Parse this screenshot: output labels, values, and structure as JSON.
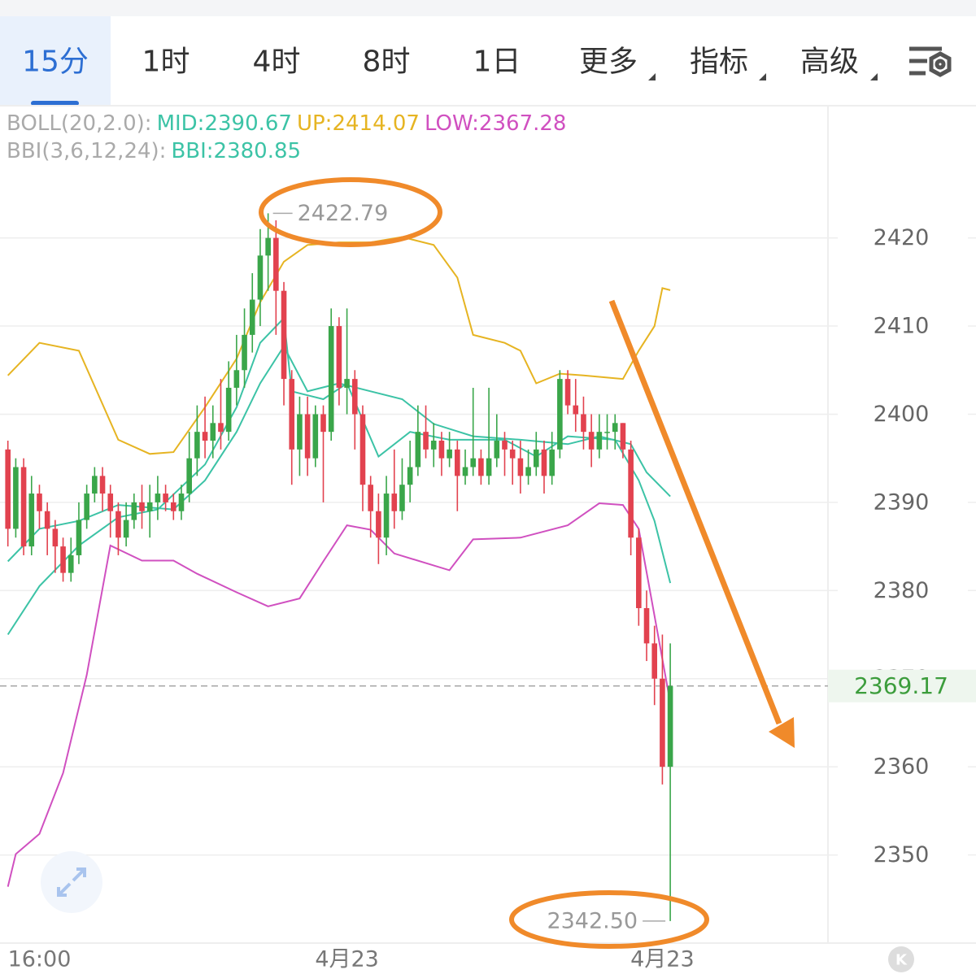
{
  "tabs": [
    "15分",
    "1时",
    "4时",
    "8时",
    "1日",
    "更多",
    "指标",
    "高级"
  ],
  "chart_data": {
    "type": "candlestick",
    "indicators": [
      {
        "name": "BOLL(20,2.0):",
        "items": [
          {
            "text": "MID:2390.67",
            "color": "#3cc3a6"
          },
          {
            "text": "UP:2414.07",
            "color": "#e6b422"
          },
          {
            "text": "LOW:2367.28",
            "color": "#d050c0"
          }
        ]
      },
      {
        "name": "BBI(3,6,12,24):",
        "items": [
          {
            "text": "BBI:2380.85",
            "color": "#3cc3a6"
          }
        ]
      }
    ],
    "open": [
      2396,
      2387,
      2394,
      2385,
      2391,
      2389,
      2387,
      2385,
      2382,
      2384,
      2388,
      2391,
      2393,
      2391,
      2389,
      2386,
      2388,
      2390,
      2389,
      2390,
      2391,
      2390,
      2389,
      2391,
      2395,
      2398,
      2397,
      2399,
      2398,
      2403,
      2405,
      2409,
      2413,
      2418,
      2420,
      2414,
      2404,
      2396,
      2400,
      2395,
      2400,
      2398,
      2410,
      2403,
      2404,
      2400,
      2392,
      2389,
      2386,
      2391,
      2389,
      2392,
      2394,
      2398,
      2396,
      2397,
      2395,
      2396,
      2393,
      2394,
      2395,
      2393,
      2395,
      2397,
      2396,
      2395,
      2393,
      2394,
      2396,
      2393,
      2396,
      2404,
      2401,
      2400,
      2398,
      2396,
      2398,
      2398,
      2399,
      2396,
      2386,
      2378,
      2374,
      2370,
      2360
    ],
    "high": [
      2397,
      2395,
      2395,
      2393,
      2392,
      2390,
      2388,
      2386,
      2386,
      2390,
      2392,
      2394,
      2394,
      2392,
      2390,
      2390,
      2391,
      2392,
      2392,
      2393,
      2392,
      2391,
      2392,
      2398,
      2401,
      2402,
      2401,
      2404,
      2406,
      2409,
      2412,
      2416,
      2421,
      2422.79,
      2422,
      2415,
      2405,
      2402,
      2402,
      2401,
      2401,
      2412,
      2411,
      2412,
      2405,
      2401,
      2393,
      2391,
      2393,
      2396,
      2395,
      2397,
      2401,
      2401,
      2399,
      2398,
      2398,
      2397,
      2396,
      2403,
      2396,
      2403,
      2400,
      2398,
      2397,
      2397,
      2396,
      2398,
      2397,
      2398,
      2405,
      2405,
      2404,
      2402,
      2400,
      2400,
      2400,
      2400,
      2399,
      2397,
      2387,
      2380,
      2376,
      2375,
      2374
    ],
    "low": [
      2385,
      2386,
      2384,
      2384,
      2387,
      2384,
      2382,
      2381,
      2381,
      2383,
      2387,
      2390,
      2389,
      2386,
      2384,
      2385,
      2387,
      2387,
      2386,
      2388,
      2389,
      2388,
      2388,
      2390,
      2393,
      2395,
      2395,
      2396,
      2397,
      2401,
      2403,
      2407,
      2410,
      2414,
      2409,
      2401,
      2392,
      2393,
      2393,
      2394,
      2390,
      2397,
      2401,
      2400,
      2396,
      2389,
      2386,
      2383,
      2384,
      2387,
      2388,
      2390,
      2393,
      2395,
      2394,
      2393,
      2394,
      2389,
      2392,
      2393,
      2392,
      2392,
      2394,
      2393,
      2392,
      2391,
      2392,
      2393,
      2391,
      2392,
      2395,
      2400,
      2398,
      2396,
      2394,
      2395,
      2396,
      2396,
      2395,
      2384,
      2376,
      2372,
      2367,
      2358,
      2342.5
    ],
    "close": [
      2387,
      2394,
      2385,
      2391,
      2389,
      2387,
      2385,
      2382,
      2384,
      2388,
      2391,
      2393,
      2391,
      2389,
      2386,
      2388,
      2390,
      2389,
      2390,
      2391,
      2390,
      2389,
      2391,
      2395,
      2398,
      2397,
      2399,
      2398,
      2403,
      2405,
      2409,
      2413,
      2418,
      2420,
      2414,
      2404,
      2396,
      2400,
      2395,
      2400,
      2398,
      2410,
      2403,
      2404,
      2400,
      2392,
      2389,
      2386,
      2391,
      2389,
      2392,
      2394,
      2398,
      2396,
      2397,
      2395,
      2396,
      2393,
      2394,
      2395,
      2393,
      2395,
      2397,
      2396,
      2395,
      2393,
      2394,
      2396,
      2393,
      2396,
      2404,
      2401,
      2400,
      2398,
      2396,
      2398,
      2398,
      2399,
      2396,
      2386,
      2378,
      2374,
      2370,
      2360,
      2369.17
    ],
    "up_color": "#3aa64a",
    "down_color": "#e2424f",
    "lines": [
      {
        "color": "#e6b422",
        "x": [
          0,
          4,
          9,
          14,
          18,
          21,
          25,
          29,
          32,
          35,
          38,
          42,
          46,
          50,
          54,
          57,
          59,
          63,
          65,
          67,
          70,
          73,
          78,
          80,
          82,
          83,
          84
        ],
        "values": [
          2404.4,
          2408.1,
          2407.2,
          2397.1,
          2395.5,
          2395.7,
          2400.8,
          2406.3,
          2412.7,
          2417.3,
          2419.2,
          2419.5,
          2419.5,
          2420.1,
          2419.2,
          2415.5,
          2409,
          2408.1,
          2407.2,
          2403.5,
          2404.6,
          2404.4,
          2404,
          2407.2,
          2410,
          2414.3,
          2414.07
        ]
      },
      {
        "color": "#d050c0",
        "x": [
          0,
          1,
          4,
          7,
          10,
          13,
          17,
          21,
          24,
          29,
          33,
          37,
          40,
          43,
          46,
          49,
          56,
          59,
          65,
          71,
          75,
          78,
          80,
          84
        ],
        "values": [
          2346.4,
          2350.1,
          2352.4,
          2359.3,
          2370.4,
          2385.1,
          2383.4,
          2383.4,
          2381.9,
          2379.8,
          2378.2,
          2379.1,
          2383.3,
          2387.4,
          2386.9,
          2384.2,
          2382.3,
          2385.8,
          2386,
          2387.4,
          2389.9,
          2389.7,
          2387,
          2367.28
        ]
      },
      {
        "color": "#3cc3a6",
        "x": [
          0,
          4,
          9,
          14,
          21,
          25,
          29,
          32,
          35,
          38,
          42,
          46,
          50,
          54,
          59,
          65,
          71,
          75,
          79,
          81,
          84
        ],
        "values": [
          2383.3,
          2387,
          2387.9,
          2389.7,
          2389.2,
          2392.5,
          2398,
          2403.5,
          2407.7,
          2402.6,
          2403.5,
          2402.6,
          2401.7,
          2398.9,
          2397.5,
          2397.1,
          2396.6,
          2397.5,
          2396.6,
          2393.4,
          2390.67
        ]
      },
      {
        "color": "#3cc3a6",
        "x": [
          0,
          4,
          9,
          14,
          19,
          25,
          29,
          32,
          35,
          36,
          40,
          43,
          47,
          51,
          56,
          63,
          67,
          71,
          77,
          80,
          82,
          84
        ],
        "values": [
          2375,
          2380.5,
          2385.1,
          2388.3,
          2389.2,
          2394.3,
          2400.8,
          2408.1,
          2410.9,
          2402.6,
          2401.7,
          2403.5,
          2395.2,
          2398,
          2397.1,
          2397.1,
          2395.2,
          2397.5,
          2397.1,
          2392.5,
          2387.9,
          2380.85
        ]
      }
    ],
    "ylim": [
      2340,
      2435
    ],
    "yticks": [
      2350,
      2360,
      2370,
      2380,
      2390,
      2400,
      2410,
      2420
    ],
    "grid": true,
    "xlim": [
      -1,
      104
    ],
    "xticks": [
      {
        "value": 4,
        "label": "16:00"
      },
      {
        "value": 43,
        "label": "4月23"
      },
      {
        "value": 83,
        "label": "4月23"
      }
    ],
    "last_price": 2369.17,
    "high_label": 2422.79,
    "low_label": {
      "value": 2342.5,
      "label": "2342.50"
    },
    "badge": "K"
  }
}
